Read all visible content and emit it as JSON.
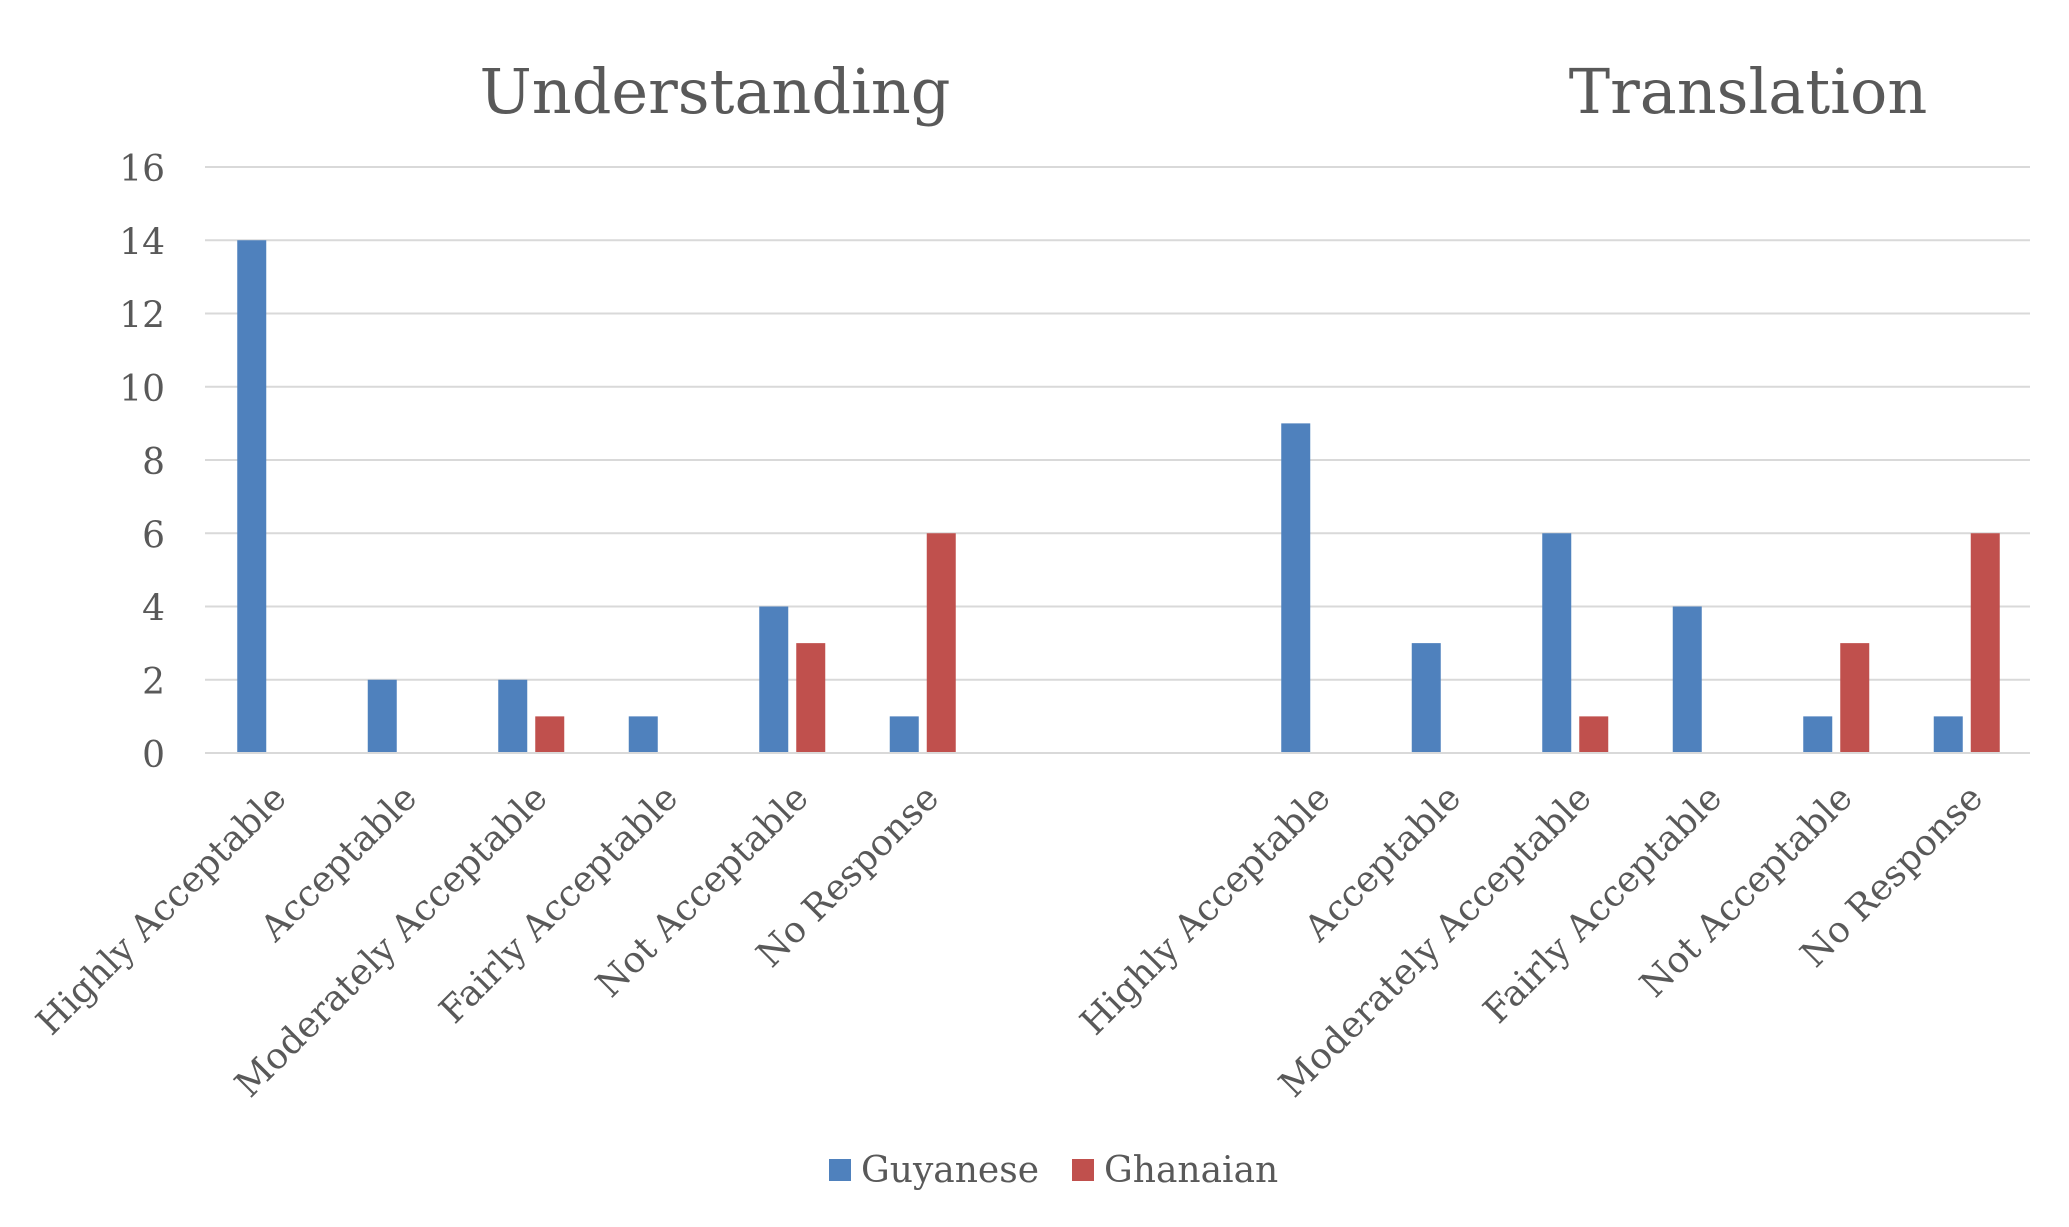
{
  "chart_data": {
    "type": "bar",
    "groups": [
      {
        "title": "Understanding",
        "categories": [
          "Highly Acceptable",
          "Acceptable",
          "Moderately Acceptable",
          "Fairly Acceptable",
          "Not Acceptable",
          "No Response"
        ],
        "series": [
          {
            "name": "Guyanese",
            "values": [
              14,
              2,
              2,
              1,
              4,
              1
            ]
          },
          {
            "name": "Ghanaian",
            "values": [
              0,
              0,
              1,
              0,
              3,
              6
            ]
          }
        ]
      },
      {
        "title": "Translation",
        "categories": [
          "Highly Acceptable",
          "Acceptable",
          "Moderately Acceptable",
          "Fairly Acceptable",
          "Not Acceptable",
          "No Response"
        ],
        "series": [
          {
            "name": "Guyanese",
            "values": [
              9,
              3,
              6,
              4,
              1,
              1
            ]
          },
          {
            "name": "Ghanaian",
            "values": [
              0,
              0,
              1,
              0,
              3,
              6
            ]
          }
        ]
      }
    ],
    "ylim": [
      0,
      16
    ],
    "yticks": [
      0,
      2,
      4,
      6,
      8,
      10,
      12,
      14,
      16
    ],
    "grid": true,
    "legend_position": "bottom",
    "colors": {
      "Guyanese": "#4f81bd",
      "Ghanaian": "#c0504d"
    },
    "xlabel": "",
    "ylabel": ""
  }
}
